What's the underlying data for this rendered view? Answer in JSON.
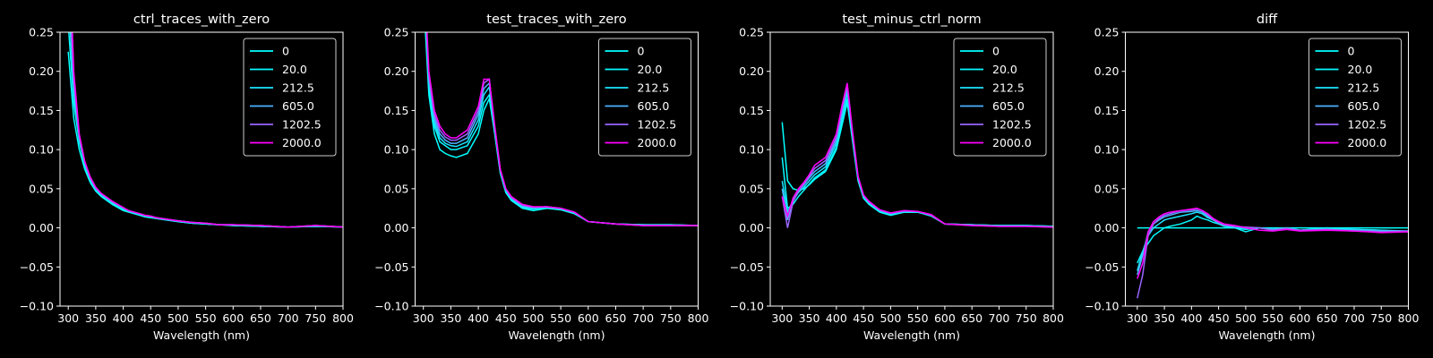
{
  "chart_data": [
    {
      "type": "line",
      "title": "ctrl_traces_with_zero",
      "x_label": "Wavelength (nm)",
      "x": [
        300,
        310,
        320,
        330,
        340,
        350,
        360,
        380,
        400,
        410,
        420,
        430,
        440,
        450,
        460,
        480,
        500,
        525,
        550,
        575,
        600,
        650,
        700,
        750,
        800
      ],
      "xlim": [
        285,
        800
      ],
      "xticks": [
        300,
        350,
        400,
        450,
        500,
        550,
        600,
        650,
        700,
        750,
        800
      ],
      "ylim": [
        -0.1,
        0.25
      ],
      "yticks": [
        {
          "value": -0.1,
          "label": "−0.10"
        },
        {
          "value": -0.05,
          "label": "−0.05"
        },
        {
          "value": 0,
          "label": "0.00"
        },
        0.05,
        {
          "value": 0.1,
          "label": "0.10"
        },
        0.15,
        {
          "value": 0.2,
          "label": "0.20"
        },
        0.25
      ],
      "grid": false,
      "legend": "upper right",
      "series": [
        {
          "name": "0",
          "color": "#00ffff",
          "values": [
            0.225,
            0.14,
            0.1,
            0.075,
            0.058,
            0.047,
            0.04,
            0.03,
            0.022,
            0.02,
            0.018,
            0.016,
            0.014,
            0.013,
            0.012,
            0.01,
            0.008,
            0.006,
            0.005,
            0.004,
            0.003,
            0.002,
            0.001,
            0.002,
            0.001
          ]
        },
        {
          "name": "20.0",
          "color": "#05faff",
          "values": [
            0.26,
            0.16,
            0.11,
            0.08,
            0.06,
            0.048,
            0.041,
            0.031,
            0.023,
            0.021,
            0.019,
            0.017,
            0.015,
            0.014,
            0.012,
            0.01,
            0.008,
            0.006,
            0.005,
            0.004,
            0.003,
            0.002,
            0.001,
            0.002,
            0.001
          ]
        },
        {
          "name": "212.5",
          "color": "#1be4ff",
          "values": [
            0.3,
            0.17,
            0.115,
            0.082,
            0.062,
            0.05,
            0.042,
            0.032,
            0.024,
            0.021,
            0.019,
            0.017,
            0.015,
            0.014,
            0.013,
            0.011,
            0.009,
            0.007,
            0.005,
            0.004,
            0.004,
            0.003,
            0.001,
            0.003,
            0.001
          ]
        },
        {
          "name": "605.0",
          "color": "#4db2ff",
          "values": [
            0.32,
            0.18,
            0.115,
            0.083,
            0.063,
            0.05,
            0.043,
            0.033,
            0.025,
            0.022,
            0.02,
            0.018,
            0.016,
            0.015,
            0.013,
            0.011,
            0.009,
            0.007,
            0.006,
            0.004,
            0.004,
            0.003,
            0.001,
            0.003,
            0.001
          ]
        },
        {
          "name": "1202.5",
          "color": "#9966ff",
          "values": [
            0.36,
            0.19,
            0.118,
            0.084,
            0.064,
            0.051,
            0.044,
            0.034,
            0.026,
            0.022,
            0.02,
            0.018,
            0.016,
            0.015,
            0.013,
            0.011,
            0.009,
            0.007,
            0.006,
            0.004,
            0.004,
            0.003,
            0.001,
            0.003,
            0.001
          ]
        },
        {
          "name": "2000.0",
          "color": "#ff00ff",
          "values": [
            0.4,
            0.2,
            0.12,
            0.085,
            0.065,
            0.052,
            0.044,
            0.034,
            0.026,
            0.022,
            0.02,
            0.018,
            0.016,
            0.015,
            0.013,
            0.011,
            0.009,
            0.007,
            0.006,
            0.004,
            0.004,
            0.003,
            0.001,
            0.003,
            0.001
          ]
        }
      ]
    },
    {
      "type": "line",
      "title": "test_traces_with_zero",
      "x_label": "Wavelength (nm)",
      "x": [
        300,
        310,
        320,
        330,
        340,
        350,
        360,
        380,
        400,
        410,
        420,
        430,
        440,
        450,
        460,
        480,
        500,
        525,
        550,
        575,
        600,
        650,
        700,
        750,
        800
      ],
      "xlim": [
        285,
        800
      ],
      "xticks": [
        300,
        350,
        400,
        450,
        500,
        550,
        600,
        650,
        700,
        750,
        800
      ],
      "ylim": [
        -0.1,
        0.25
      ],
      "yticks": [
        {
          "value": -0.1,
          "label": "−0.10"
        },
        {
          "value": -0.05,
          "label": "−0.05"
        },
        {
          "value": 0,
          "label": "0.00"
        },
        0.05,
        {
          "value": 0.1,
          "label": "0.10"
        },
        0.15,
        {
          "value": 0.2,
          "label": "0.20"
        },
        0.25
      ],
      "grid": false,
      "legend": "upper right",
      "series": [
        {
          "name": "0",
          "color": "#00ffff",
          "values": [
            0.3,
            0.17,
            0.12,
            0.1,
            0.095,
            0.092,
            0.09,
            0.095,
            0.12,
            0.15,
            0.165,
            0.12,
            0.07,
            0.045,
            0.035,
            0.025,
            0.022,
            0.025,
            0.023,
            0.018,
            0.008,
            0.005,
            0.004,
            0.004,
            0.003
          ]
        },
        {
          "name": "20.0",
          "color": "#05faff",
          "values": [
            0.31,
            0.18,
            0.13,
            0.11,
            0.105,
            0.1,
            0.1,
            0.105,
            0.13,
            0.16,
            0.17,
            0.12,
            0.07,
            0.046,
            0.036,
            0.026,
            0.024,
            0.026,
            0.024,
            0.019,
            0.008,
            0.005,
            0.004,
            0.004,
            0.003
          ]
        },
        {
          "name": "212.5",
          "color": "#1be4ff",
          "values": [
            0.32,
            0.185,
            0.135,
            0.115,
            0.108,
            0.105,
            0.104,
            0.11,
            0.138,
            0.17,
            0.18,
            0.125,
            0.072,
            0.048,
            0.037,
            0.027,
            0.025,
            0.026,
            0.024,
            0.019,
            0.008,
            0.005,
            0.004,
            0.003,
            0.003
          ]
        },
        {
          "name": "605.0",
          "color": "#4db2ff",
          "values": [
            0.33,
            0.19,
            0.14,
            0.12,
            0.112,
            0.108,
            0.108,
            0.115,
            0.145,
            0.178,
            0.185,
            0.127,
            0.073,
            0.049,
            0.038,
            0.028,
            0.026,
            0.027,
            0.025,
            0.02,
            0.008,
            0.005,
            0.003,
            0.003,
            0.003
          ]
        },
        {
          "name": "1202.5",
          "color": "#9966ff",
          "values": [
            0.34,
            0.195,
            0.145,
            0.125,
            0.116,
            0.112,
            0.112,
            0.12,
            0.15,
            0.185,
            0.19,
            0.128,
            0.074,
            0.05,
            0.039,
            0.029,
            0.026,
            0.027,
            0.025,
            0.02,
            0.008,
            0.005,
            0.003,
            0.003,
            0.003
          ]
        },
        {
          "name": "2000.0",
          "color": "#ff00ff",
          "values": [
            0.35,
            0.2,
            0.15,
            0.13,
            0.12,
            0.115,
            0.115,
            0.125,
            0.155,
            0.19,
            0.19,
            0.13,
            0.075,
            0.05,
            0.04,
            0.03,
            0.027,
            0.027,
            0.025,
            0.02,
            0.008,
            0.005,
            0.003,
            0.003,
            0.003
          ]
        }
      ]
    },
    {
      "type": "line",
      "title": "test_minus_ctrl_norm",
      "x_label": "Wavelength (nm)",
      "x": [
        300,
        310,
        320,
        330,
        340,
        350,
        360,
        380,
        400,
        410,
        420,
        430,
        440,
        450,
        460,
        480,
        500,
        525,
        550,
        575,
        600,
        650,
        700,
        750,
        800
      ],
      "xlim": [
        278,
        800
      ],
      "xticks": [
        300,
        350,
        400,
        450,
        500,
        550,
        600,
        650,
        700,
        750,
        800
      ],
      "ylim": [
        -0.1,
        0.25
      ],
      "yticks": [
        {
          "value": -0.1,
          "label": "−0.10"
        },
        {
          "value": -0.05,
          "label": "−0.05"
        },
        {
          "value": 0,
          "label": "0.00"
        },
        0.05,
        {
          "value": 0.1,
          "label": "0.10"
        },
        0.15,
        {
          "value": 0.2,
          "label": "0.20"
        },
        0.25
      ],
      "grid": false,
      "legend": "upper right",
      "series": [
        {
          "name": "0",
          "color": "#00ffff",
          "values": [
            0.135,
            0.06,
            0.05,
            0.048,
            0.05,
            0.055,
            0.062,
            0.072,
            0.1,
            0.13,
            0.16,
            0.11,
            0.06,
            0.038,
            0.03,
            0.02,
            0.016,
            0.02,
            0.02,
            0.015,
            0.005,
            0.004,
            0.003,
            0.003,
            0.002
          ]
        },
        {
          "name": "20.0",
          "color": "#05faff",
          "values": [
            0.09,
            0.025,
            0.03,
            0.04,
            0.048,
            0.056,
            0.064,
            0.074,
            0.103,
            0.135,
            0.165,
            0.112,
            0.062,
            0.039,
            0.031,
            0.021,
            0.017,
            0.02,
            0.02,
            0.016,
            0.005,
            0.004,
            0.003,
            0.003,
            0.002
          ]
        },
        {
          "name": "212.5",
          "color": "#1be4ff",
          "values": [
            0.06,
            0.02,
            0.035,
            0.045,
            0.052,
            0.06,
            0.068,
            0.078,
            0.108,
            0.14,
            0.172,
            0.115,
            0.063,
            0.04,
            0.032,
            0.022,
            0.018,
            0.021,
            0.021,
            0.016,
            0.005,
            0.004,
            0.003,
            0.003,
            0.002
          ]
        },
        {
          "name": "605.0",
          "color": "#4db2ff",
          "values": [
            0.05,
            0.01,
            0.035,
            0.047,
            0.055,
            0.064,
            0.072,
            0.082,
            0.112,
            0.146,
            0.178,
            0.118,
            0.064,
            0.041,
            0.033,
            0.022,
            0.018,
            0.021,
            0.021,
            0.016,
            0.005,
            0.004,
            0.002,
            0.002,
            0.001
          ]
        },
        {
          "name": "1202.5",
          "color": "#9966ff",
          "values": [
            0.04,
            0.0,
            0.033,
            0.047,
            0.056,
            0.066,
            0.076,
            0.086,
            0.116,
            0.152,
            0.182,
            0.12,
            0.065,
            0.042,
            0.033,
            0.023,
            0.019,
            0.022,
            0.021,
            0.016,
            0.005,
            0.003,
            0.002,
            0.002,
            0.001
          ]
        },
        {
          "name": "2000.0",
          "color": "#ff00ff",
          "values": [
            0.04,
            0.015,
            0.038,
            0.05,
            0.058,
            0.068,
            0.08,
            0.09,
            0.12,
            0.155,
            0.185,
            0.122,
            0.066,
            0.042,
            0.034,
            0.023,
            0.019,
            0.022,
            0.021,
            0.017,
            0.005,
            0.003,
            0.002,
            0.002,
            0.001
          ]
        }
      ]
    },
    {
      "type": "line",
      "title": "diff",
      "x_label": "Wavelength (nm)",
      "x": [
        300,
        310,
        320,
        330,
        340,
        350,
        360,
        380,
        400,
        410,
        420,
        430,
        440,
        450,
        460,
        480,
        500,
        525,
        550,
        575,
        600,
        650,
        700,
        750,
        800
      ],
      "xlim": [
        278,
        800
      ],
      "xticks": [
        300,
        350,
        400,
        450,
        500,
        550,
        600,
        650,
        700,
        750,
        800
      ],
      "ylim": [
        -0.1,
        0.25
      ],
      "yticks": [
        {
          "value": -0.1,
          "label": "−0.10"
        },
        {
          "value": -0.05,
          "label": "−0.05"
        },
        {
          "value": 0,
          "label": "0.00"
        },
        0.05,
        {
          "value": 0.1,
          "label": "0.10"
        },
        0.15,
        {
          "value": 0.2,
          "label": "0.20"
        },
        0.25
      ],
      "grid": false,
      "legend": "upper right",
      "series": [
        {
          "name": "0",
          "color": "#00ffff",
          "values": [
            0,
            0,
            0,
            0,
            0,
            0,
            0,
            0,
            0,
            0,
            0,
            0,
            0,
            0,
            0,
            0,
            0,
            0,
            0,
            0,
            0,
            0,
            0,
            0,
            0
          ]
        },
        {
          "name": "20.0",
          "color": "#05faff",
          "values": [
            -0.045,
            -0.03,
            -0.02,
            -0.01,
            -0.005,
            0,
            0.002,
            0.005,
            0.01,
            0.015,
            0.012,
            0.01,
            0.007,
            0.005,
            0.002,
            0,
            -0.005,
            0,
            -0.002,
            0,
            -0.003,
            0,
            -0.002,
            -0.003,
            -0.005
          ]
        },
        {
          "name": "212.5",
          "color": "#1be4ff",
          "values": [
            -0.055,
            -0.03,
            -0.01,
            0,
            0.005,
            0.01,
            0.012,
            0.015,
            0.018,
            0.02,
            0.018,
            0.013,
            0.01,
            0.006,
            0.003,
            0,
            -0.002,
            0,
            -0.002,
            0,
            -0.003,
            -0.001,
            -0.002,
            -0.003,
            -0.004
          ]
        },
        {
          "name": "605.0",
          "color": "#4db2ff",
          "values": [
            -0.06,
            -0.035,
            -0.005,
            0.005,
            0.01,
            0.014,
            0.016,
            0.02,
            0.021,
            0.022,
            0.02,
            0.015,
            0.01,
            0.006,
            0.003,
            0.002,
            0,
            0,
            -0.002,
            0,
            -0.003,
            -0.002,
            -0.003,
            -0.004,
            -0.004
          ]
        },
        {
          "name": "1202.5",
          "color": "#9966ff",
          "values": [
            -0.09,
            -0.06,
            -0.01,
            0.005,
            0.012,
            0.016,
            0.018,
            0.022,
            0.023,
            0.024,
            0.022,
            0.017,
            0.011,
            0.007,
            0.004,
            0.002,
            0.001,
            0,
            -0.003,
            -0.001,
            -0.003,
            -0.002,
            -0.004,
            -0.005,
            -0.004
          ]
        },
        {
          "name": "2000.0",
          "color": "#ff00ff",
          "values": [
            -0.065,
            -0.045,
            -0.005,
            0.008,
            0.014,
            0.018,
            0.02,
            0.022,
            0.024,
            0.025,
            0.022,
            0.018,
            0.012,
            0.008,
            0.005,
            0.003,
            0,
            -0.003,
            -0.004,
            -0.002,
            -0.004,
            -0.003,
            -0.004,
            -0.006,
            -0.005
          ]
        }
      ]
    }
  ]
}
